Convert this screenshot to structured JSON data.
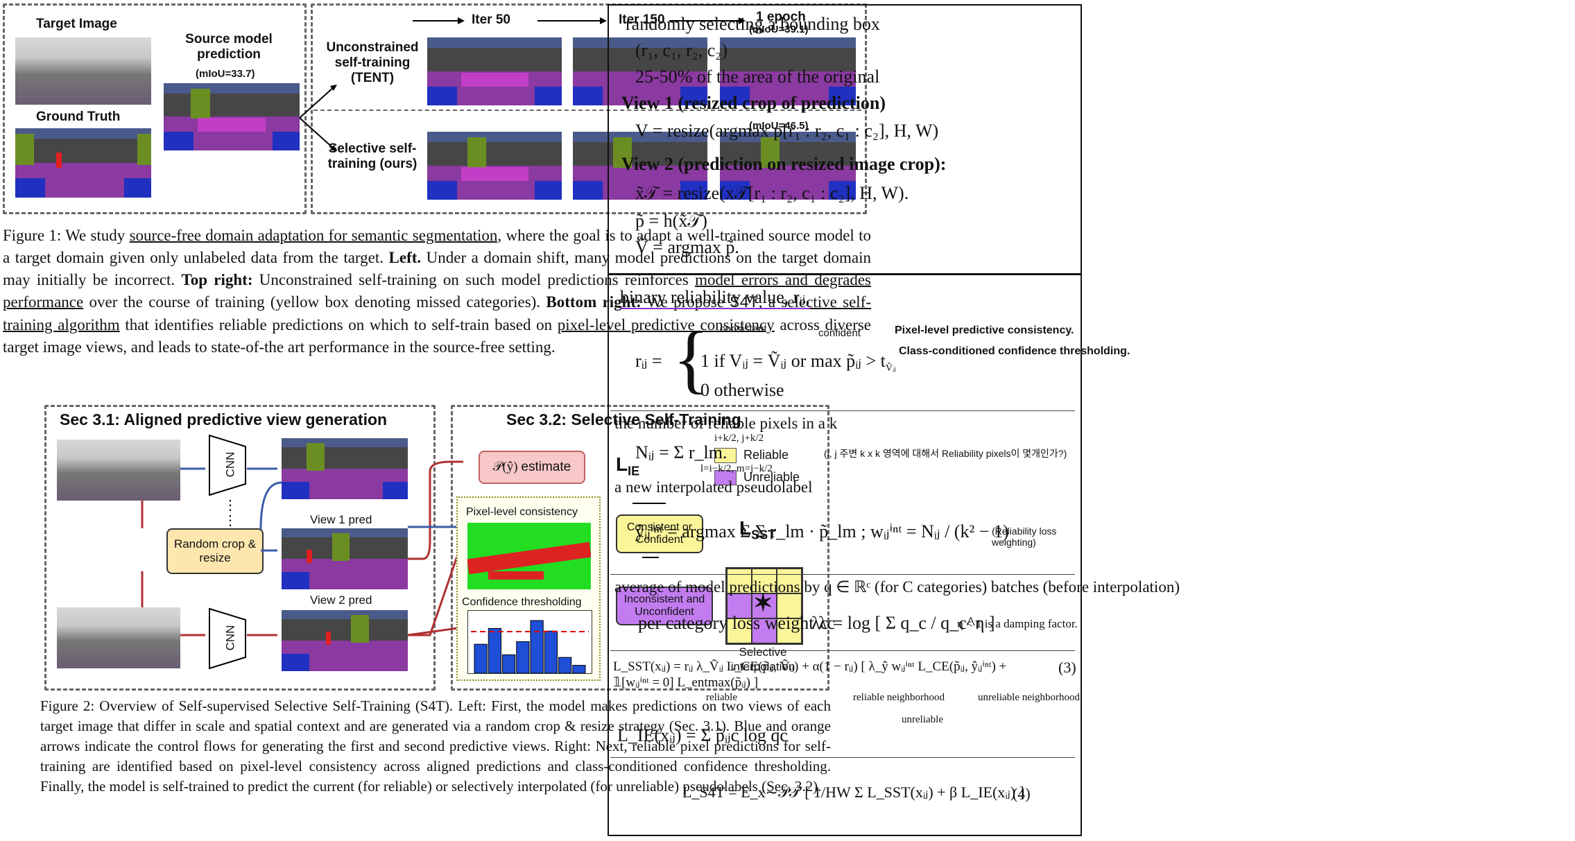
{
  "fig1": {
    "target_image": "Target Image",
    "ground_truth": "Ground Truth",
    "source_pred_title": "Source model prediction",
    "source_pred_miou": "(mIoU=33.7)",
    "iter50": "Iter 50",
    "iter150": "Iter 150",
    "epoch": "1 epoch",
    "miou_top": "(mIoU=39.1)",
    "miou_bottom": "(mIoU=46.5)",
    "unconstrained": "Unconstrained self-training (TENT)",
    "selective": "Selective self-training (ours)",
    "caption_parts": {
      "p1": "Figure 1: We study ",
      "u1": "source-free domain adaptation for semantic segmentation,",
      "p2": " where the goal is to adapt a well-trained source model to a target domain given only unlabeled data from the target. ",
      "b1": "Left.",
      "p3": " Under a domain shift, many model predictions on the target domain may initially be incorrect. ",
      "b2": "Top right:",
      "p4": " Unconstrained self-training on such model predictions reinforces ",
      "u2": "model errors and degrades performance",
      "p5": " over the course of training (yellow box denoting missed categories). ",
      "b3": "Bottom right:",
      "p6": " We propose ",
      "m1": "S4T",
      "p7": ", ",
      "u3": "a selective self-training algorithm",
      "p8": " that identifies reliable predictions on which to self-train based on ",
      "u4": "pixel-level predictive consistency",
      "p9": " across diverse target image views, and leads to state-of-the art performance in the source-free setting."
    }
  },
  "fig2": {
    "sec31": "Sec 3.1: Aligned predictive view generation",
    "sec32": "Sec 3.2: Selective Self-Training",
    "cnn": "CNN",
    "random_crop": "Random crop & resize",
    "view1": "View 1 pred",
    "view2": "View 2 pred",
    "estimate": "estimate",
    "p_yhat": "𝒫(ŷ)",
    "l_ie": "L",
    "l_ie_sub": "IE",
    "l_sst": "L",
    "l_sst_sub": "SST",
    "reliable": "Reliable",
    "unreliable": "Unreliable",
    "pixel_consistency": "Pixel-level consistency",
    "conf_thresh": "Confidence thresholding",
    "consistent_or_conf": "Consistent or Confident",
    "incons_uncons": "Inconsistent and Unconfident",
    "selective_interp": "Selective interpolation",
    "caption": "Figure 2: Overview of Self-supervised Selective Self-Training (S4T). Left: First, the model makes predictions on two views of each target image that differ in scale and spatial context and are generated via a random crop & resize strategy (Sec. 3.1). Blue and orange arrows indicate the control flows for generating the first and second predictive views. Right: Next, reliable pixel predictions for self-training are identified based on pixel-level consistency across aligned predictions and class-conditioned confidence thresholding. Finally, the model is self-trained to predict the current (for reliable) or selectively interpolated (for unreliable) pseudolabels (Sec. 3.2).",
    "histogram": [
      0.55,
      0.85,
      0.35,
      0.6,
      1.0,
      0.8,
      0.3,
      0.15
    ]
  },
  "notes": {
    "n1": "randomly selecting a bounding box",
    "n2": "(r₁, c₁, r₂, c₂)",
    "n3": "25-50% of the area of the original",
    "view1_title": "View 1 (resized crop of prediction)",
    "view1_eq": "V = resize(argmax p[r₁ : r₂, c₁ : c₂], H, W)",
    "view2_title": "View 2 (prediction on resized image crop):",
    "view2_eq1": "x̃𝒯 = resize(x𝒯[r₁ : r₂, c₁ : c₂], H, W).",
    "view2_eq2": "p̃ = h(x̃𝒯)",
    "view2_eq3": "Ṽ = argmax p̃.",
    "binary_rel": "binary reliability value, rᵢⱼ,",
    "rij": "rᵢⱼ =",
    "case1": "1   if  Vᵢⱼ = Ṽᵢⱼ  or  max  p̃ᵢⱼ > t",
    "case1_sub": "Ṽᵢⱼ",
    "case2": "0   otherwise",
    "consistent": "consistent",
    "confident": "confident",
    "pixel_note": "Pixel-level predictive consistency.",
    "class_note": "Class-conditioned confidence thresholding.",
    "num_rel": "the number of reliable pixels in a k",
    "nij_eq": "Nᵢⱼ = Σ r_lm.",
    "nij_limits_top": "i+k/2, j+k/2",
    "nij_limits_bot": "l=i−k/2, m=j−k/2",
    "korean_note": "(i, j 주변 k x k 영역에 대해서 Reliability pixels이 몇개인가?)",
    "new_interp": "a new interpolated pseudolabel",
    "yint_eq": "ŷᵢⱼⁱⁿᵗ = argmax Σ Σ r_lm · p̃_lm   ;   wᵢⱼⁱⁿᵗ = Nᵢⱼ / (k² − 1)",
    "rel_loss_note": "(Reliability loss weighting)",
    "avg_pred": "average of model predictions by q ∈ ℝᶜ (for C categories) batches (before interpolation)",
    "cat_weight": "per category loss weight λc",
    "lambda_eq": "λc = log [ Σ q_c / q_c^η ]",
    "damping": "η < 1 is a damping factor.",
    "lsst_eq": "L_SST(xᵢⱼ) = rᵢⱼ λ_Ṽᵢⱼ L_CE(p̃ᵢⱼ, Ṽᵢⱼ) + α(1 − rᵢⱼ) [ λ_ŷ wᵢⱼⁱⁿᵗ L_CE(p̃ᵢⱼ, ŷᵢⱼⁱⁿᵗ) + 𝟙[wᵢⱼⁱⁿᵗ = 0] L_entmax(p̃ᵢⱼ) ]",
    "eq3": "(3)",
    "reliable_lbl": "reliable",
    "rel_nbr": "reliable neighborhood",
    "unrel_nbr": "unreliable neighborhood",
    "unreliable_lbl": "unreliable",
    "lie_eq": "L_IE(xᵢⱼ) = Σ p̃ᵢⱼc log qc",
    "ls4t_eq": "L_S4T = E_x∼𝒫𝒯 [ 1/HW Σ L_SST(xᵢⱼ) + β L_IE(xᵢⱼ) ]",
    "eq4": "(4)"
  },
  "colors": {
    "reliable": "#fbf59a",
    "unreliable": "#c27cf0",
    "estimate_bg": "#f8c8c8",
    "crop_bg": "#fde7ae"
  }
}
